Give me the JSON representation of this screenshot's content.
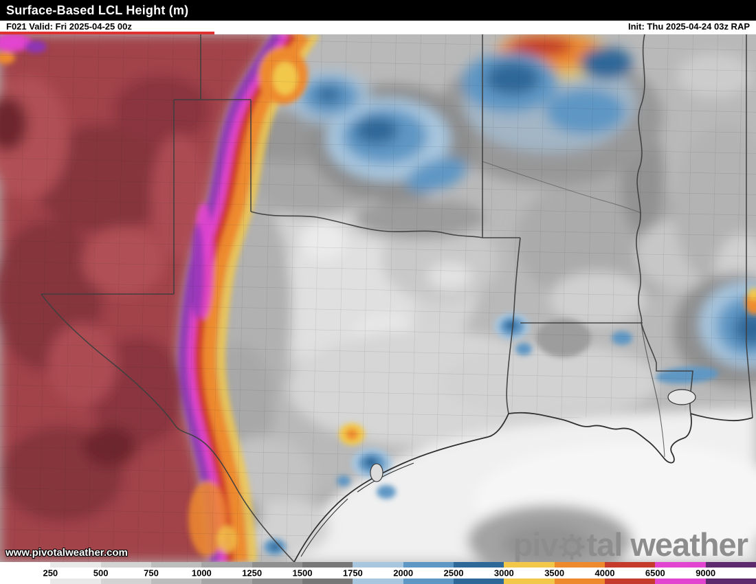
{
  "header": {
    "title": "Surface-Based LCL Height (m)",
    "forecast_info": "F021 Valid: Fri 2025-04-25 00z",
    "init_info": "Init: Thu 2025-04-24 03z RAP"
  },
  "watermark": "www.pivotalweather.com",
  "logo": {
    "part1": "piv",
    "part2": "tal weather"
  },
  "colors": {
    "header_bg": "#000000",
    "header_text": "#ffffff",
    "accent_red": "#e03131",
    "logo_gray": "#8d8d8d",
    "map_base_gray": "#b9b9b9"
  },
  "chart_data": {
    "type": "heatmap",
    "title": "Surface-Based LCL Height (m)",
    "parameter": "Surface-Based LCL Height",
    "units": "m",
    "model": "RAP",
    "forecast_hour": "F021",
    "valid_time": "Fri 2025-04-25 00z",
    "init_time": "Thu 2025-04-24 03z",
    "legend_position": "bottom",
    "colorbar": {
      "labels": [
        "250",
        "500",
        "750",
        "1000",
        "1250",
        "1500",
        "1750",
        "2000",
        "2500",
        "3000",
        "3500",
        "4000",
        "6500",
        "9000"
      ],
      "boundary_values": [
        250,
        500,
        750,
        1000,
        1250,
        1500,
        1750,
        2000,
        2500,
        3000,
        3500,
        4000,
        6500,
        9000
      ],
      "segment_colors": [
        "#ffffff",
        "#e9e9e9",
        "#d3d3d3",
        "#bdbdbd",
        "#a6a6a6",
        "#8f8f8f",
        "#777777",
        "#a8c6de",
        "#5f97c4",
        "#2e6899",
        "#f2c84b",
        "#ee8a2e",
        "#c43a2c",
        "#e245cf",
        "#5e2a6e"
      ]
    },
    "features": [
      {
        "region": "broad area west of the dryline (west Texas / New Mexico border region)",
        "appearance": "dark red / maroon fill",
        "approx_value_m": "4000-6500"
      },
      {
        "region": "sharp dryline band curving north-south through the western Texas Panhandle",
        "appearance": "magenta and purple band with red, orange and yellow fringes to its east",
        "approx_value_m": "3000-9000"
      },
      {
        "region": "central / east Texas, Oklahoma, Arkansas, Mississippi",
        "appearance": "light to mid grays with darker gray patches",
        "approx_value_m": "250-2000"
      },
      {
        "region": "Gulf of Mexico and immediate coast",
        "appearance": "white / near-white",
        "approx_value_m": "<500"
      },
      {
        "region": "pockets over central Oklahoma, the Ozarks, Louisiana and the Mississippi/Alabama border",
        "appearance": "blue to dark teal blobs",
        "approx_value_m": "1750-3000"
      },
      {
        "region": "spots near the upper Texas coast and far northeast Oklahoma",
        "appearance": "small yellow/orange/red cores",
        "approx_value_m": "3000-4000"
      }
    ]
  }
}
